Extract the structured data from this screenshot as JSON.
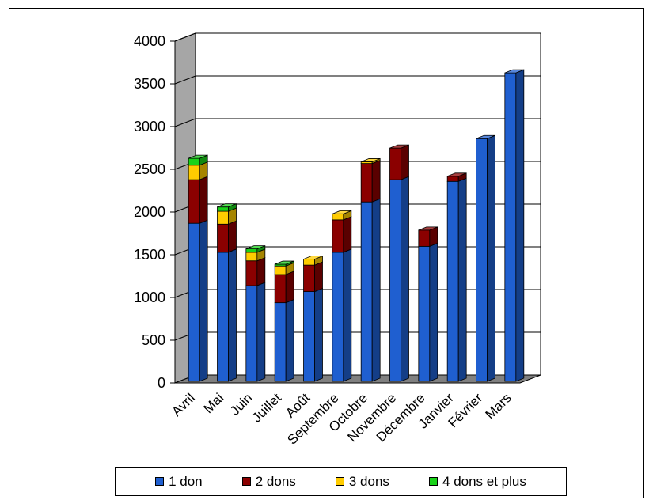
{
  "chart_data": {
    "type": "bar",
    "stacked": true,
    "three_d": true,
    "categories": [
      "Avril",
      "Mai",
      "Juin",
      "Juillet",
      "Août",
      "Septembre",
      "Octobre",
      "Novembre",
      "Décembre",
      "Janvier",
      "Février",
      "Mars"
    ],
    "series": [
      {
        "name": "1 don",
        "color": "#1f5fd0",
        "values": [
          1850,
          1510,
          1120,
          920,
          1050,
          1510,
          2100,
          2360,
          1580,
          2340,
          2840,
          3610
        ]
      },
      {
        "name": "2 dons",
        "color": "#8b0000",
        "values": [
          510,
          330,
          290,
          330,
          310,
          380,
          450,
          370,
          190,
          60,
          0,
          0
        ]
      },
      {
        "name": "3 dons",
        "color": "#ffcc00",
        "values": [
          170,
          150,
          100,
          100,
          70,
          70,
          20,
          0,
          0,
          0,
          0,
          0
        ]
      },
      {
        "name": "4 dons et plus",
        "color": "#19d219",
        "values": [
          80,
          50,
          40,
          20,
          0,
          0,
          0,
          0,
          0,
          0,
          0,
          0
        ]
      }
    ],
    "ylim": [
      0,
      4000
    ],
    "yticks": [
      "0",
      "500",
      "1000",
      "1500",
      "2000",
      "2500",
      "3000",
      "3500",
      "4000"
    ],
    "grid": true,
    "legend_position": "bottom",
    "wall_color": "#a6a6a6",
    "floor_color": "#808080"
  }
}
